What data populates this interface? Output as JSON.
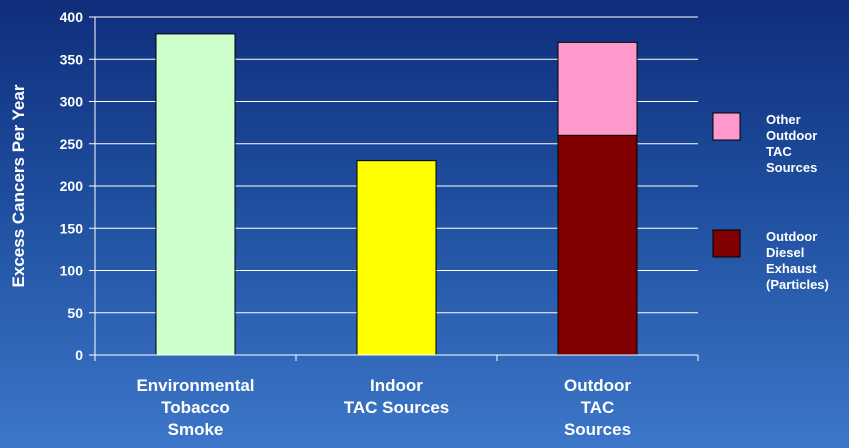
{
  "chart_data": {
    "type": "bar",
    "stacked": true,
    "title": "",
    "ylabel": "Excess Cancers Per Year",
    "xlabel": "",
    "ylim": [
      0,
      400
    ],
    "yticks": [
      0,
      50,
      100,
      150,
      200,
      250,
      300,
      350,
      400
    ],
    "grid": true,
    "legend_position": "right",
    "categories": [
      [
        "Environmental",
        "Tobacco",
        "Smoke"
      ],
      [
        "Indoor",
        "TAC Sources"
      ],
      [
        "Outdoor",
        "TAC",
        "Sources"
      ]
    ],
    "series": [
      {
        "id": "ets",
        "values": [
          380,
          0,
          0
        ],
        "color": "#ccffcc"
      },
      {
        "id": "indoor",
        "values": [
          0,
          230,
          0
        ],
        "color": "#ffff00"
      },
      {
        "id": "diesel",
        "name": [
          "Outdoor",
          "Diesel",
          "Exhaust",
          "(Particles)"
        ],
        "values": [
          0,
          0,
          260
        ],
        "color": "#800000"
      },
      {
        "id": "other",
        "name": [
          "Other",
          "Outdoor",
          "TAC",
          "Sources"
        ],
        "values": [
          0,
          0,
          110
        ],
        "color": "#ff99cc"
      }
    ],
    "legend_order": [
      "other",
      "diesel"
    ]
  }
}
